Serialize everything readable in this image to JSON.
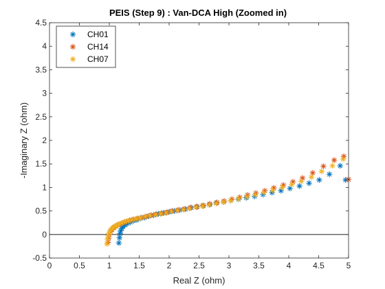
{
  "chart_data": {
    "type": "scatter",
    "title": "PEIS (Step 9) : Van-DCA High (Zoomed in)",
    "xlabel": "Real Z (ohm)",
    "ylabel": "-Imaginary Z (ohm)",
    "xlim": [
      0,
      5
    ],
    "ylim": [
      -0.5,
      4.5
    ],
    "xticks": [
      0,
      0.5,
      1,
      1.5,
      2,
      2.5,
      3,
      3.5,
      4,
      4.5,
      5
    ],
    "xtick_labels": [
      "0",
      "0.5",
      "1",
      "1.5",
      "2",
      "2.5",
      "3",
      "3.5",
      "4",
      "4.5",
      "5"
    ],
    "yticks": [
      -0.5,
      0,
      0.5,
      1,
      1.5,
      2,
      2.5,
      3,
      3.5,
      4,
      4.5
    ],
    "ytick_labels": [
      "-0.5",
      "0",
      "0.5",
      "1",
      "1.5",
      "2",
      "2.5",
      "3",
      "3.5",
      "4",
      "4.5"
    ],
    "grid": false,
    "legend_position": "top-left",
    "zero_line": true,
    "series": [
      {
        "name": "CH01",
        "color": "#0072bd",
        "marker": "asterisk",
        "x": [
          1.16,
          1.17,
          1.18,
          1.19,
          1.21,
          1.23,
          1.26,
          1.3,
          1.35,
          1.4,
          1.46,
          1.52,
          1.59,
          1.66,
          1.74,
          1.82,
          1.91,
          2.0,
          2.09,
          2.18,
          2.27,
          2.37,
          2.47,
          2.57,
          2.68,
          2.79,
          2.91,
          3.03,
          3.16,
          3.29,
          3.43,
          3.57,
          3.72,
          3.87,
          4.02,
          4.18,
          4.34,
          4.51,
          4.68,
          4.86,
          4.95
        ],
        "y": [
          -0.18,
          -0.07,
          0.02,
          0.08,
          0.13,
          0.17,
          0.2,
          0.23,
          0.26,
          0.29,
          0.31,
          0.34,
          0.36,
          0.39,
          0.41,
          0.44,
          0.46,
          0.48,
          0.5,
          0.52,
          0.54,
          0.57,
          0.59,
          0.61,
          0.64,
          0.67,
          0.69,
          0.72,
          0.75,
          0.78,
          0.81,
          0.85,
          0.89,
          0.93,
          0.98,
          1.03,
          1.09,
          1.16,
          1.28,
          1.46,
          1.16
        ]
      },
      {
        "name": "CH14",
        "color": "#d95319",
        "marker": "asterisk",
        "x": [
          0.98,
          0.99,
          1.0,
          1.02,
          1.04,
          1.07,
          1.1,
          1.14,
          1.18,
          1.23,
          1.28,
          1.34,
          1.4,
          1.47,
          1.54,
          1.62,
          1.7,
          1.78,
          1.87,
          1.96,
          2.05,
          2.15,
          2.25,
          2.35,
          2.46,
          2.57,
          2.68,
          2.8,
          2.92,
          3.05,
          3.18,
          3.31,
          3.45,
          3.6,
          3.75,
          3.91,
          4.07,
          4.23,
          4.4,
          4.58,
          4.76,
          4.92,
          5.0
        ],
        "y": [
          -0.17,
          -0.08,
          0.0,
          0.06,
          0.1,
          0.14,
          0.17,
          0.2,
          0.22,
          0.25,
          0.27,
          0.3,
          0.32,
          0.34,
          0.36,
          0.38,
          0.41,
          0.43,
          0.45,
          0.47,
          0.5,
          0.52,
          0.54,
          0.57,
          0.59,
          0.62,
          0.65,
          0.68,
          0.71,
          0.75,
          0.79,
          0.84,
          0.88,
          0.93,
          0.99,
          1.05,
          1.12,
          1.2,
          1.31,
          1.45,
          1.58,
          1.66,
          1.17
        ]
      },
      {
        "name": "CH07",
        "color": "#edb120",
        "marker": "asterisk",
        "x": [
          0.96,
          0.97,
          0.98,
          1.0,
          1.02,
          1.05,
          1.08,
          1.12,
          1.16,
          1.21,
          1.26,
          1.32,
          1.38,
          1.45,
          1.52,
          1.6,
          1.68,
          1.77,
          1.86,
          1.95,
          2.04,
          2.14,
          2.24,
          2.34,
          2.45,
          2.56,
          2.67,
          2.79,
          2.91,
          3.03,
          3.16,
          3.3,
          3.44,
          3.58,
          3.73,
          3.89,
          4.05,
          4.21,
          4.38,
          4.55,
          4.73,
          4.91
        ],
        "y": [
          -0.2,
          -0.1,
          -0.02,
          0.04,
          0.09,
          0.13,
          0.16,
          0.19,
          0.22,
          0.24,
          0.27,
          0.29,
          0.31,
          0.33,
          0.35,
          0.38,
          0.4,
          0.42,
          0.44,
          0.46,
          0.49,
          0.51,
          0.53,
          0.55,
          0.58,
          0.6,
          0.63,
          0.66,
          0.69,
          0.72,
          0.76,
          0.8,
          0.84,
          0.89,
          0.94,
          1.0,
          1.06,
          1.13,
          1.22,
          1.34,
          1.46,
          1.6
        ]
      }
    ]
  }
}
